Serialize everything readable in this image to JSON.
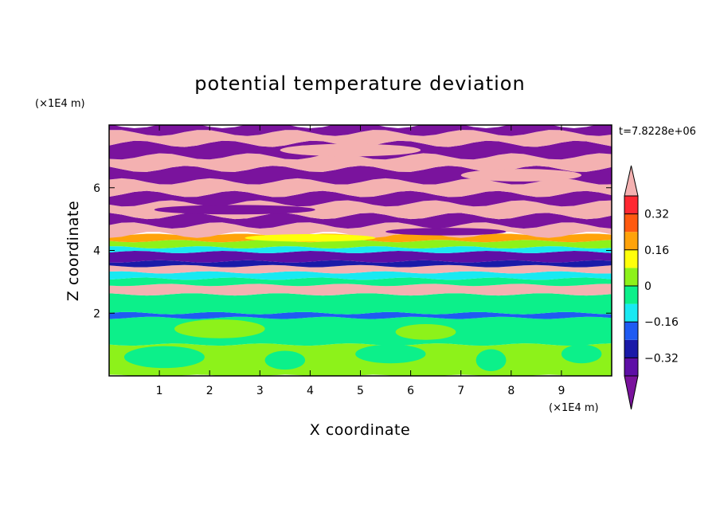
{
  "chart_data": {
    "type": "heatmap",
    "title": "potential temperature deviation",
    "xlabel": "X coordinate",
    "ylabel": "Z coordinate",
    "x_unit": "(×1E4 m)",
    "y_unit": "(×1E4 m)",
    "time_label": "t=7.8228e+06",
    "xlim": [
      0,
      10
    ],
    "ylim": [
      0,
      8
    ],
    "x_ticks": [
      1,
      2,
      3,
      4,
      5,
      6,
      7,
      8,
      9
    ],
    "y_ticks": [
      2,
      4,
      6
    ],
    "colorbar": {
      "min": -0.4,
      "max": 0.4,
      "levels": [
        -0.4,
        -0.32,
        -0.24,
        -0.16,
        -0.08,
        0,
        0.08,
        0.16,
        0.24,
        0.32,
        0.4
      ],
      "tick_values": [
        -0.32,
        -0.16,
        0,
        0.16,
        0.32
      ],
      "tick_labels": [
        "−0.32",
        "−0.16",
        "0",
        "0.16",
        "0.32"
      ],
      "extend": "both",
      "colors": [
        "#7a139d",
        "#5e0fa6",
        "#1a1aa8",
        "#1f5bf2",
        "#19e9f2",
        "#0cf08a",
        "#8df21a",
        "#ffff0a",
        "#ffa30a",
        "#ff5a10",
        "#ff2832",
        "#f4b1b1"
      ]
    },
    "bands": [
      {
        "z": [
          0.0,
          1.0
        ],
        "value": 0.06
      },
      {
        "z": [
          1.0,
          1.85
        ],
        "value": -0.04
      },
      {
        "z": [
          1.85,
          2.0
        ],
        "value": -0.24
      },
      {
        "z": [
          2.0,
          2.6
        ],
        "value": -0.04
      },
      {
        "z": [
          2.6,
          2.9
        ],
        "value": 0.42
      },
      {
        "z": [
          2.9,
          3.1
        ],
        "value": -0.04
      },
      {
        "z": [
          3.1,
          3.3
        ],
        "value": -0.12
      },
      {
        "z": [
          3.3,
          3.5
        ],
        "value": 0.42
      },
      {
        "z": [
          3.5,
          3.65
        ],
        "value": -0.28
      },
      {
        "z": [
          3.65,
          3.95
        ],
        "value": -0.36
      },
      {
        "z": [
          3.95,
          4.1
        ],
        "value": -0.12
      },
      {
        "z": [
          4.1,
          4.3
        ],
        "value": 0.06
      },
      {
        "z": [
          4.3,
          4.5
        ],
        "value": 0.2
      },
      {
        "z": [
          4.5,
          4.8
        ],
        "value": 0.42
      },
      {
        "z": [
          4.8,
          5.1
        ],
        "value": -0.42
      },
      {
        "z": [
          5.1,
          5.5
        ],
        "value": 0.42
      },
      {
        "z": [
          5.5,
          5.8
        ],
        "value": -0.42
      },
      {
        "z": [
          5.8,
          6.2
        ],
        "value": 0.42
      },
      {
        "z": [
          6.2,
          6.6
        ],
        "value": -0.42
      },
      {
        "z": [
          6.6,
          7.0
        ],
        "value": 0.42
      },
      {
        "z": [
          7.0,
          7.4
        ],
        "value": -0.42
      },
      {
        "z": [
          7.4,
          7.75
        ],
        "value": 0.42
      },
      {
        "z": [
          7.75,
          8.0
        ],
        "value": -0.42
      }
    ],
    "patches": [
      {
        "x": 1.1,
        "z": 0.6,
        "rx": 0.8,
        "rz": 0.35,
        "value": -0.04
      },
      {
        "x": 3.5,
        "z": 0.5,
        "rx": 0.4,
        "rz": 0.3,
        "value": -0.04
      },
      {
        "x": 5.6,
        "z": 0.7,
        "rx": 0.7,
        "rz": 0.3,
        "value": -0.04
      },
      {
        "x": 7.6,
        "z": 0.5,
        "rx": 0.3,
        "rz": 0.35,
        "value": -0.04
      },
      {
        "x": 9.4,
        "z": 0.7,
        "rx": 0.4,
        "rz": 0.3,
        "value": -0.04
      },
      {
        "x": 2.2,
        "z": 1.5,
        "rx": 0.9,
        "rz": 0.3,
        "value": 0.06
      },
      {
        "x": 6.3,
        "z": 1.4,
        "rx": 0.6,
        "rz": 0.25,
        "value": 0.06
      },
      {
        "x": 4.0,
        "z": 4.4,
        "rx": 1.3,
        "rz": 0.12,
        "value": 0.14
      },
      {
        "x": 6.7,
        "z": 4.6,
        "rx": 1.2,
        "rz": 0.12,
        "value": -0.42
      },
      {
        "x": 2.5,
        "z": 5.3,
        "rx": 1.6,
        "rz": 0.15,
        "value": -0.42
      },
      {
        "x": 8.2,
        "z": 6.4,
        "rx": 1.2,
        "rz": 0.2,
        "value": 0.42
      },
      {
        "x": 4.8,
        "z": 7.2,
        "rx": 1.4,
        "rz": 0.2,
        "value": 0.42
      }
    ]
  }
}
